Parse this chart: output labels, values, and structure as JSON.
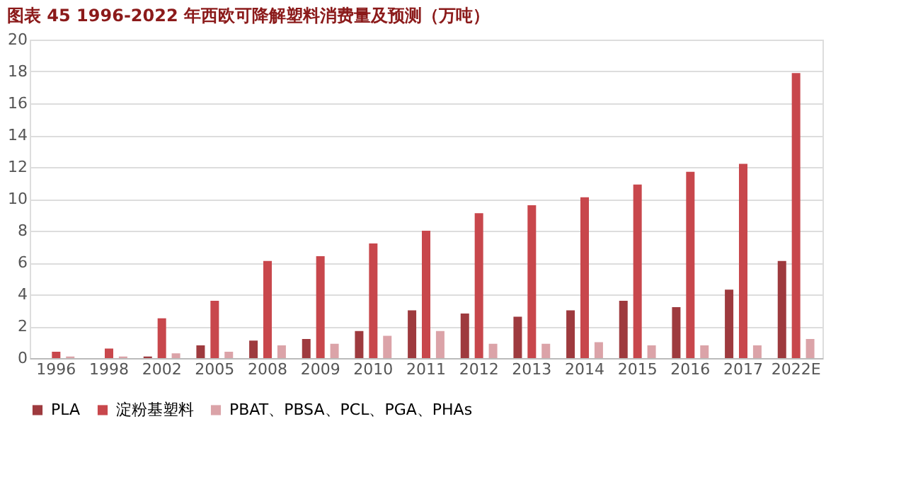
{
  "chart_data": {
    "type": "bar",
    "title": "图表 45 1996-2022 年西欧可降解塑料消费量及预测（万吨）",
    "categories": [
      "1996",
      "1998",
      "2002",
      "2005",
      "2008",
      "2009",
      "2010",
      "2011",
      "2012",
      "2013",
      "2014",
      "2015",
      "2016",
      "2017",
      "2022E"
    ],
    "series": [
      {
        "name": "PLA",
        "color": "#9e3a3e",
        "values": [
          0,
          0,
          0.1,
          0.8,
          1.1,
          1.2,
          1.7,
          3.0,
          2.8,
          2.6,
          3.0,
          3.6,
          3.2,
          4.3,
          6.1
        ]
      },
      {
        "name": "淀粉基塑料",
        "color": "#c8474c",
        "values": [
          0.4,
          0.6,
          2.5,
          3.6,
          6.1,
          6.4,
          7.2,
          8.0,
          9.1,
          9.6,
          10.1,
          10.9,
          11.7,
          12.2,
          17.9
        ]
      },
      {
        "name": "PBAT、PBSA、PCL、PGA、PHAs",
        "color": "#dba3a8",
        "values": [
          0.1,
          0.1,
          0.3,
          0.4,
          0.8,
          0.9,
          1.4,
          1.7,
          0.9,
          0.9,
          1.0,
          0.8,
          0.8,
          0.8,
          1.2
        ]
      }
    ],
    "ylim": [
      0,
      20
    ],
    "yticks": [
      0,
      2,
      4,
      6,
      8,
      10,
      12,
      14,
      16,
      18,
      20
    ],
    "grid": "y",
    "legend": "bottom"
  }
}
